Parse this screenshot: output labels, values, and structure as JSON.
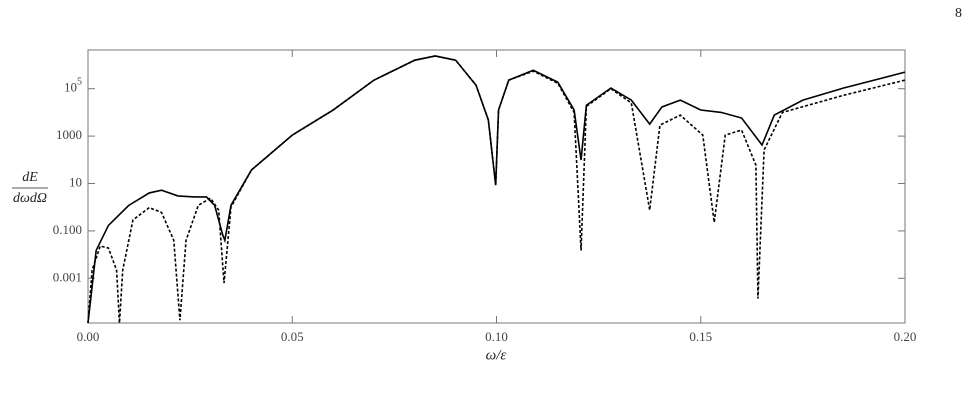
{
  "page_number": "8",
  "chart_data": {
    "type": "line",
    "x_label": "ω/ε",
    "y_label": {
      "numerator": "dE",
      "denominator": "dωdΩ"
    },
    "xlim": [
      0,
      0.2
    ],
    "xticks": [
      {
        "value": 0,
        "label": "0.00"
      },
      0.05,
      {
        "value": 0.1,
        "label": "0.10"
      },
      0.15,
      {
        "value": 0.2,
        "label": "0.20"
      }
    ],
    "ylim": [
      1.3e-05,
      4300000.0
    ],
    "yticks": [
      0.001,
      {
        "value": 0.1,
        "label": "0.100"
      },
      10,
      1000,
      {
        "value": 100000,
        "label": "10^5"
      }
    ],
    "log_y": true,
    "series": [
      {
        "color": "#000000",
        "dash": false,
        "x": [
          0,
          0.002,
          0.005,
          0.01,
          0.015,
          0.018,
          0.022,
          0.026,
          0.029,
          0.031,
          0.033,
          0.0335,
          0.035,
          0.04,
          0.05,
          0.06,
          0.07,
          0.08,
          0.085,
          0.09,
          0.095,
          0.098,
          0.0998,
          0.1005,
          0.103,
          0.109,
          0.115,
          0.119,
          0.1207,
          0.122,
          0.128,
          0.133,
          0.1375,
          0.1405,
          0.145,
          0.15,
          0.155,
          0.16,
          0.165,
          0.168,
          0.175,
          0.185,
          0.2
        ],
        "values": [
          1.3e-05,
          0.015,
          0.17,
          1.2,
          4,
          5.2,
          3,
          2.7,
          2.7,
          1.2,
          0.066,
          0.04,
          1.2,
          37,
          1100,
          12600,
          230000,
          1600000,
          2400000,
          1600000,
          140000,
          4800,
          8.5,
          12600,
          230000,
          600000,
          190000,
          12600,
          98,
          20000,
          107000,
          33000,
          3200,
          17000,
          33000,
          12600,
          10000,
          5800,
          420,
          7700,
          33000,
          107000,
          500000
        ]
      },
      {
        "color": "#000000",
        "dash": true,
        "x": [
          0,
          0.001,
          0.003,
          0.005,
          0.007,
          0.0077,
          0.0085,
          0.011,
          0.015,
          0.018,
          0.021,
          0.0225,
          0.024,
          0.027,
          0.03,
          0.032,
          0.0333,
          0.035,
          0.04,
          0.05,
          0.06,
          0.07,
          0.08,
          0.085,
          0.09,
          0.095,
          0.098,
          0.0998,
          0.1005,
          0.103,
          0.109,
          0.115,
          0.119,
          0.1207,
          0.122,
          0.128,
          0.133,
          0.1375,
          0.14,
          0.145,
          0.1505,
          0.1533,
          0.156,
          0.16,
          0.1635,
          0.164,
          0.1655,
          0.17,
          0.185,
          0.2
        ],
        "values": [
          1.3e-05,
          0.0022,
          0.023,
          0.019,
          0.0022,
          1.3e-05,
          0.0022,
          0.29,
          0.96,
          0.6,
          0.04,
          1.7e-05,
          0.04,
          1.2,
          2.4,
          0.75,
          0.00063,
          1,
          37,
          1100,
          12600,
          230000,
          1600000,
          2400000,
          1600000,
          140000,
          4800,
          8.5,
          12600,
          230000,
          550000,
          170000,
          10000,
          0.015,
          18000,
          100000,
          25000,
          0.76,
          2900,
          7700,
          1100,
          0.23,
          1100,
          1800,
          60,
          0.00014,
          260,
          10000,
          53000,
          230000
        ]
      }
    ]
  }
}
